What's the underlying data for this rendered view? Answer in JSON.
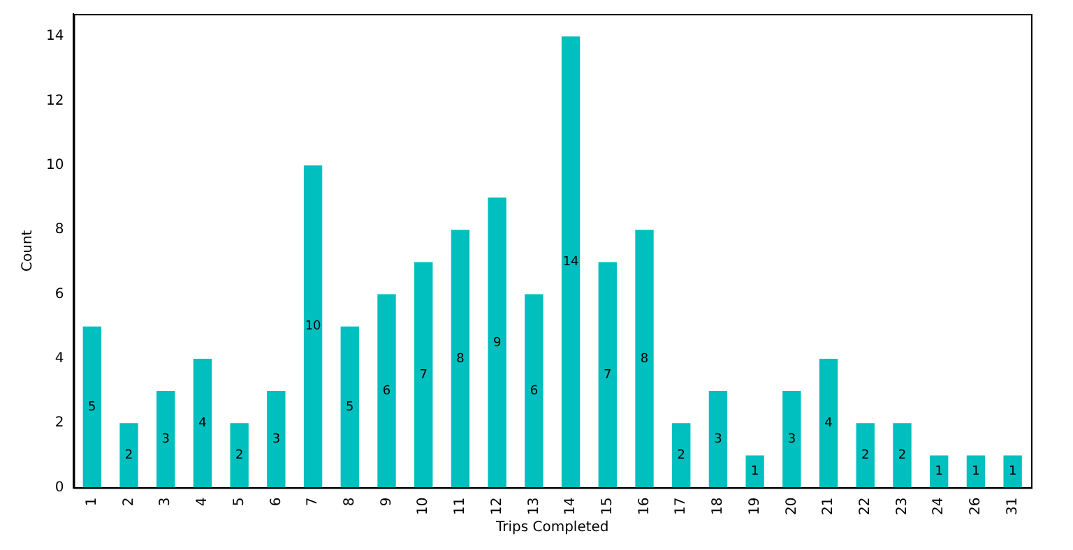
{
  "chart_data": {
    "type": "bar",
    "xlabel": "Trips Completed",
    "ylabel": "Count",
    "categories": [
      "1",
      "2",
      "3",
      "4",
      "5",
      "6",
      "7",
      "8",
      "9",
      "10",
      "11",
      "12",
      "13",
      "14",
      "15",
      "16",
      "17",
      "18",
      "19",
      "20",
      "21",
      "22",
      "23",
      "24",
      "26",
      "31"
    ],
    "values": [
      5,
      2,
      3,
      4,
      2,
      3,
      10,
      5,
      6,
      7,
      8,
      9,
      6,
      14,
      7,
      8,
      2,
      3,
      1,
      3,
      4,
      2,
      2,
      1,
      1,
      1
    ],
    "color": "#00bfbf",
    "ylim": [
      0,
      14.7
    ],
    "yticks": [
      0,
      2,
      4,
      6,
      8,
      10,
      12,
      14
    ],
    "grid": false,
    "legend": false,
    "data_labels": true
  }
}
